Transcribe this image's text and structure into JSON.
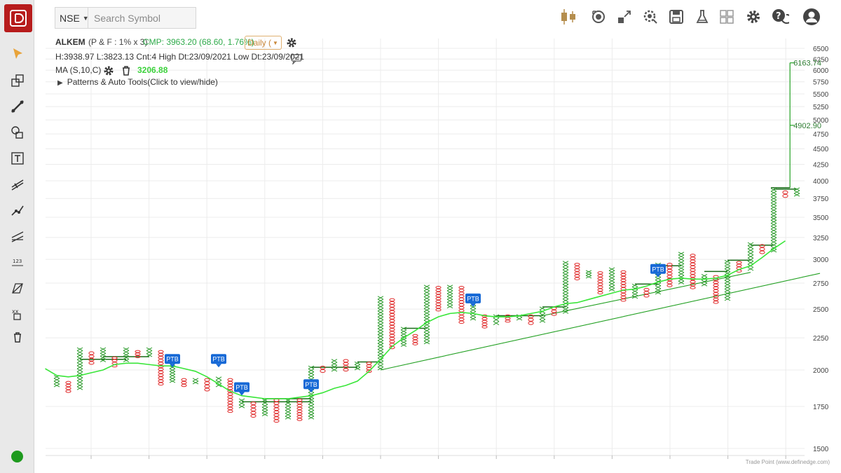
{
  "toolbar": {
    "exchange": "NSE",
    "search_placeholder": "Search Symbol",
    "icons": [
      "candlestick-chart-type-icon",
      "snapshot-icon",
      "expand-icon",
      "settings-search-icon",
      "save-icon",
      "lab-icon",
      "layout-icon",
      "gear-icon",
      "help-chat-icon",
      "user-icon"
    ]
  },
  "sidebar": {
    "tools": [
      "cursor-arrow-icon",
      "rectangle-tool-icon",
      "trendline-tool-icon",
      "shapes-tool-icon",
      "text-tool-icon",
      "fib-tool-icon",
      "trend-points-icon",
      "channel-tool-icon",
      "number-label-icon",
      "projection-tool-icon",
      "pattern-icon",
      "trash-icon"
    ],
    "status_color": "#1e9a1e"
  },
  "chart_info": {
    "symbol": "ALKEM",
    "pf_settings": "(P & F : 1% x 3)",
    "cmp": "CMP: 3963.20 (68.60, 1.76%)",
    "period": "Daily (",
    "hl_line": "H:3938.97 L:3823.13 Cnt:4 High Dt:23/09/2021 Low Dt:23/09/2021",
    "ma_label": "MA (S,10,C)",
    "ma_value": "3206.88",
    "patterns_label": "Patterns & Auto Tools(Click to view/hide)"
  },
  "credit": "Trade Point (www.definedge.com)",
  "colors": {
    "x": "#2e9c2e",
    "o": "#e02b2b",
    "ma": "#39e639",
    "trend": "#22a022",
    "ptb": "#1769d6",
    "grid": "#ececec"
  },
  "chart_data": {
    "type": "point-and-figure",
    "y_axis": {
      "ticks": [
        1500,
        1750,
        2000,
        2250,
        2500,
        2750,
        3000,
        3250,
        3500,
        3750,
        4000,
        4250,
        4500,
        4750,
        5000,
        5250,
        5500,
        5750,
        6000,
        6250,
        6500
      ],
      "scale": "log"
    },
    "columns": [
      {
        "t": "X",
        "lo": 1880,
        "hi": 1960
      },
      {
        "t": "O",
        "lo": 1840,
        "hi": 1920
      },
      {
        "t": "X",
        "lo": 1860,
        "hi": 2170
      },
      {
        "t": "O",
        "lo": 2040,
        "hi": 2140
      },
      {
        "t": "X",
        "lo": 2060,
        "hi": 2170
      },
      {
        "t": "O",
        "lo": 2020,
        "hi": 2100
      },
      {
        "t": "X",
        "lo": 2060,
        "hi": 2170
      },
      {
        "t": "O",
        "lo": 2090,
        "hi": 2150
      },
      {
        "t": "X",
        "lo": 2100,
        "hi": 2170
      },
      {
        "t": "O",
        "lo": 1890,
        "hi": 2150
      },
      {
        "t": "X",
        "lo": 1910,
        "hi": 2050
      },
      {
        "t": "O",
        "lo": 1880,
        "hi": 1940
      },
      {
        "t": "X",
        "lo": 1900,
        "hi": 1940
      },
      {
        "t": "O",
        "lo": 1850,
        "hi": 1940
      },
      {
        "t": "X",
        "lo": 1880,
        "hi": 1950
      },
      {
        "t": "O",
        "lo": 1710,
        "hi": 1940
      },
      {
        "t": "X",
        "lo": 1740,
        "hi": 1800
      },
      {
        "t": "O",
        "lo": 1680,
        "hi": 1780
      },
      {
        "t": "X",
        "lo": 1690,
        "hi": 1800
      },
      {
        "t": "O",
        "lo": 1650,
        "hi": 1800
      },
      {
        "t": "X",
        "lo": 1670,
        "hi": 1800
      },
      {
        "t": "O",
        "lo": 1660,
        "hi": 1800
      },
      {
        "t": "X",
        "lo": 1670,
        "hi": 2030
      },
      {
        "t": "O",
        "lo": 1980,
        "hi": 2030
      },
      {
        "t": "X",
        "lo": 1990,
        "hi": 2080
      },
      {
        "t": "O",
        "lo": 1990,
        "hi": 2080
      },
      {
        "t": "X",
        "lo": 2000,
        "hi": 2060
      },
      {
        "t": "O",
        "lo": 1980,
        "hi": 2060
      },
      {
        "t": "X",
        "lo": 2000,
        "hi": 2620
      },
      {
        "t": "O",
        "lo": 2160,
        "hi": 2600
      },
      {
        "t": "X",
        "lo": 2180,
        "hi": 2340
      },
      {
        "t": "O",
        "lo": 2190,
        "hi": 2280
      },
      {
        "t": "X",
        "lo": 2200,
        "hi": 2730
      },
      {
        "t": "O",
        "lo": 2480,
        "hi": 2720
      },
      {
        "t": "X",
        "lo": 2510,
        "hi": 2730
      },
      {
        "t": "O",
        "lo": 2370,
        "hi": 2720
      },
      {
        "t": "X",
        "lo": 2400,
        "hi": 2640
      },
      {
        "t": "O",
        "lo": 2330,
        "hi": 2450
      },
      {
        "t": "X",
        "lo": 2360,
        "hi": 2450
      },
      {
        "t": "O",
        "lo": 2380,
        "hi": 2450
      },
      {
        "t": "X",
        "lo": 2400,
        "hi": 2450
      },
      {
        "t": "O",
        "lo": 2360,
        "hi": 2450
      },
      {
        "t": "X",
        "lo": 2380,
        "hi": 2520
      },
      {
        "t": "O",
        "lo": 2440,
        "hi": 2520
      },
      {
        "t": "X",
        "lo": 2460,
        "hi": 2980
      },
      {
        "t": "O",
        "lo": 2780,
        "hi": 2960
      },
      {
        "t": "X",
        "lo": 2800,
        "hi": 2880
      },
      {
        "t": "O",
        "lo": 2640,
        "hi": 2870
      },
      {
        "t": "X",
        "lo": 2670,
        "hi": 2910
      },
      {
        "t": "O",
        "lo": 2570,
        "hi": 2880
      },
      {
        "t": "X",
        "lo": 2600,
        "hi": 2740
      },
      {
        "t": "O",
        "lo": 2610,
        "hi": 2700
      },
      {
        "t": "X",
        "lo": 2640,
        "hi": 2960
      },
      {
        "t": "O",
        "lo": 2710,
        "hi": 2960
      },
      {
        "t": "X",
        "lo": 2740,
        "hi": 3080
      },
      {
        "t": "O",
        "lo": 2690,
        "hi": 3060
      },
      {
        "t": "X",
        "lo": 2720,
        "hi": 2840
      },
      {
        "t": "O",
        "lo": 2550,
        "hi": 2830
      },
      {
        "t": "X",
        "lo": 2580,
        "hi": 2990
      },
      {
        "t": "O",
        "lo": 2860,
        "hi": 2980
      },
      {
        "t": "X",
        "lo": 2880,
        "hi": 3190
      },
      {
        "t": "O",
        "lo": 3060,
        "hi": 3170
      },
      {
        "t": "X",
        "lo": 3080,
        "hi": 3890
      },
      {
        "t": "O",
        "lo": 3760,
        "hi": 3860
      },
      {
        "t": "X",
        "lo": 3780,
        "hi": 3900
      }
    ],
    "ptb_markers": [
      {
        "col": 10,
        "price": 2035
      },
      {
        "col": 14,
        "price": 2035
      },
      {
        "col": 16,
        "price": 1835
      },
      {
        "col": 22,
        "price": 1855
      },
      {
        "col": 36,
        "price": 2540
      },
      {
        "col": 52,
        "price": 2830
      }
    ],
    "breakout_lines": [
      {
        "from": 2,
        "to": 6,
        "price": 2080
      },
      {
        "from": 4,
        "to": 8,
        "price": 2100
      },
      {
        "from": 16,
        "to": 22,
        "price": 1780
      },
      {
        "from": 18,
        "to": 22,
        "price": 1800
      },
      {
        "from": 22,
        "to": 26,
        "price": 2020
      },
      {
        "from": 26,
        "to": 28,
        "price": 2060
      },
      {
        "from": 30,
        "to": 32,
        "price": 2330
      },
      {
        "from": 38,
        "to": 42,
        "price": 2440
      },
      {
        "from": 42,
        "to": 44,
        "price": 2520
      },
      {
        "from": 50,
        "to": 52,
        "price": 2740
      },
      {
        "from": 52,
        "to": 54,
        "price": 2930
      },
      {
        "from": 56,
        "to": 58,
        "price": 2870
      },
      {
        "from": 58,
        "to": 60,
        "price": 2990
      },
      {
        "from": 60,
        "to": 62,
        "price": 3160
      },
      {
        "from": 62,
        "to": 64,
        "price": 3880
      }
    ],
    "ma_series": [
      2010,
      1960,
      1950,
      1960,
      1980,
      2000,
      2040,
      2050,
      2050,
      2040,
      2030,
      2030,
      2010,
      1990,
      1950,
      1900,
      1850,
      1820,
      1810,
      1800,
      1800,
      1800,
      1810,
      1820,
      1840,
      1870,
      1890,
      1920,
      1990,
      2080,
      2180,
      2250,
      2310,
      2380,
      2430,
      2460,
      2470,
      2460,
      2440,
      2430,
      2430,
      2440,
      2460,
      2480,
      2520,
      2550,
      2560,
      2590,
      2620,
      2650,
      2680,
      2690,
      2720,
      2760,
      2790,
      2800,
      2790,
      2790,
      2800,
      2830,
      2890,
      2930,
      3020,
      3120,
      3210
    ],
    "trend_lines": [
      {
        "from_col": 28,
        "from_price": 2000,
        "to_col": 66,
        "to_price": 2850
      },
      {
        "from_col": 42,
        "from_price": 2440,
        "to_col": 60,
        "to_price": 2860
      }
    ],
    "target_lines": [
      {
        "col": 62.8,
        "bottom": 3900,
        "top": 6163.74,
        "mid": 4902.9,
        "labels": [
          "6163.74",
          "4902.90"
        ]
      }
    ]
  }
}
